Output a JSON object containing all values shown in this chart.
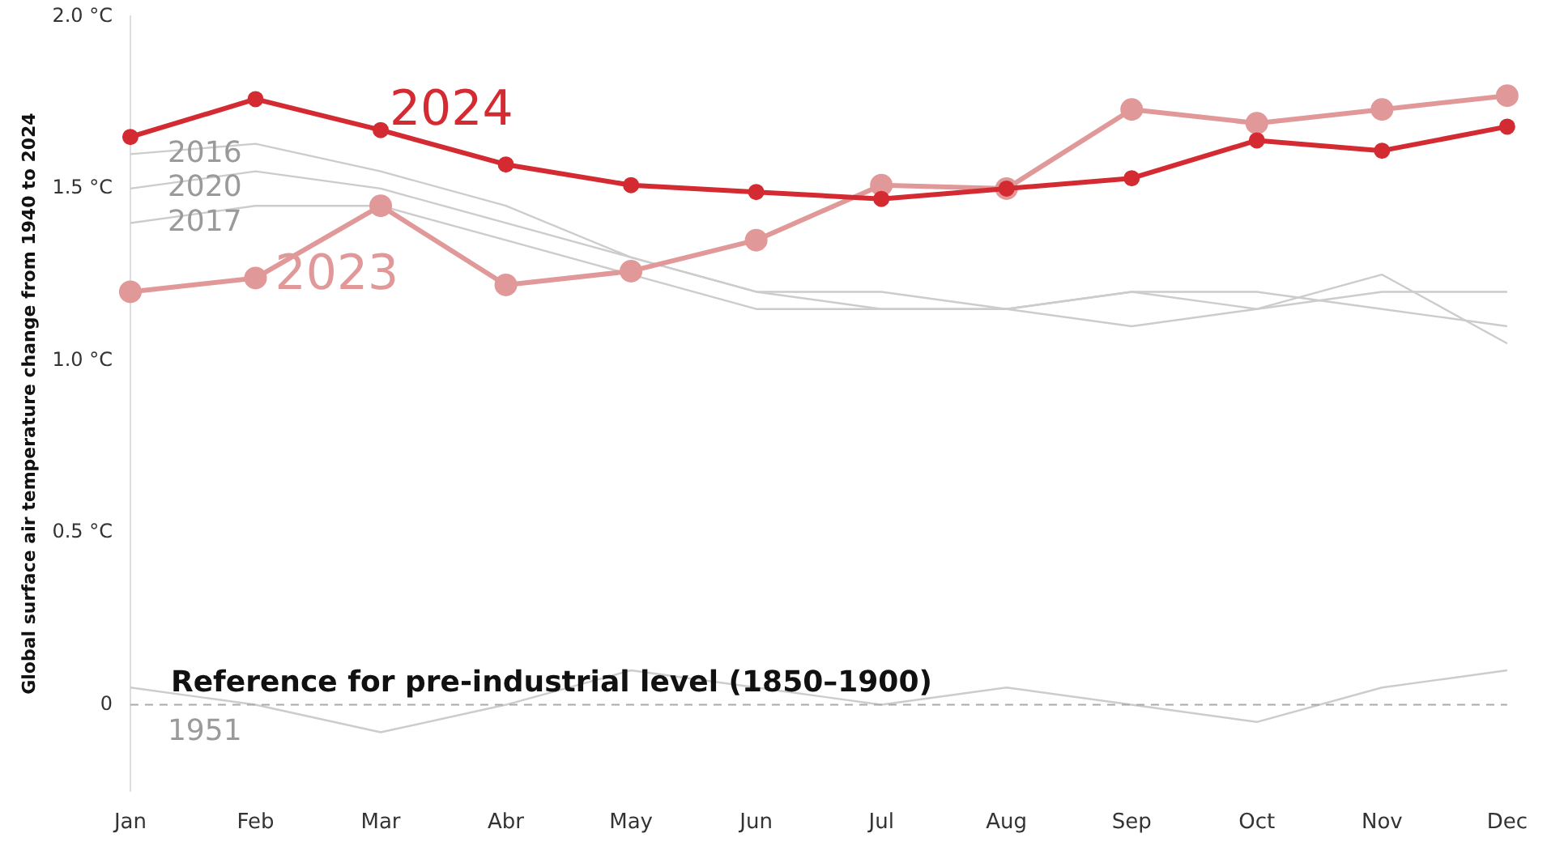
{
  "chart_data": {
    "type": "line",
    "ylabel": "Global surface air temperature change from 1940 to 2024",
    "categories": [
      "Jan",
      "Feb",
      "Mar",
      "Abr",
      "May",
      "Jun",
      "Jul",
      "Aug",
      "Sep",
      "Oct",
      "Nov",
      "Dec"
    ],
    "series": [
      {
        "name": "1951",
        "color": "#cccccc",
        "marker": "none",
        "values": [
          0.05,
          0.0,
          -0.08,
          0.0,
          0.1,
          0.05,
          0.0,
          0.05,
          0.0,
          -0.05,
          0.05,
          0.1
        ]
      },
      {
        "name": "2017",
        "color": "#cccccc",
        "marker": "none",
        "values": [
          1.4,
          1.45,
          1.45,
          1.35,
          1.25,
          1.15,
          1.15,
          1.15,
          1.1,
          1.15,
          1.2,
          1.2
        ]
      },
      {
        "name": "2020",
        "color": "#cccccc",
        "marker": "none",
        "values": [
          1.5,
          1.55,
          1.5,
          1.4,
          1.3,
          1.2,
          1.2,
          1.15,
          1.2,
          1.15,
          1.25,
          1.05
        ]
      },
      {
        "name": "2016",
        "color": "#cccccc",
        "marker": "none",
        "values": [
          1.6,
          1.63,
          1.55,
          1.45,
          1.3,
          1.2,
          1.15,
          1.15,
          1.2,
          1.2,
          1.15,
          1.1
        ]
      },
      {
        "name": "2023",
        "color": "#e09898",
        "marker": "circle",
        "values": [
          1.2,
          1.24,
          1.45,
          1.22,
          1.26,
          1.35,
          1.51,
          1.5,
          1.73,
          1.69,
          1.73,
          1.77
        ]
      },
      {
        "name": "2024",
        "color": "#d42a32",
        "marker": "circle",
        "values": [
          1.65,
          1.76,
          1.67,
          1.57,
          1.51,
          1.49,
          1.47,
          1.5,
          1.53,
          1.64,
          1.61,
          1.68
        ]
      }
    ],
    "ylim": [
      -0.25,
      2.0
    ],
    "yticks": [
      {
        "value": 0,
        "label": "0"
      },
      {
        "value": 0.5,
        "label": "0.5 °C"
      },
      {
        "value": 1.0,
        "label": "1.0 °C"
      },
      {
        "value": 1.5,
        "label": "1.5 °C"
      },
      {
        "value": 2.0,
        "label": "2.0 °C"
      }
    ],
    "ref_lines": [
      {
        "axis": "y",
        "value": 0,
        "label": "Reference for pre-industrial level (1850–1900)",
        "color": "#aaaaaa",
        "line_style": "dashed"
      }
    ],
    "grid": false,
    "legend": false
  }
}
